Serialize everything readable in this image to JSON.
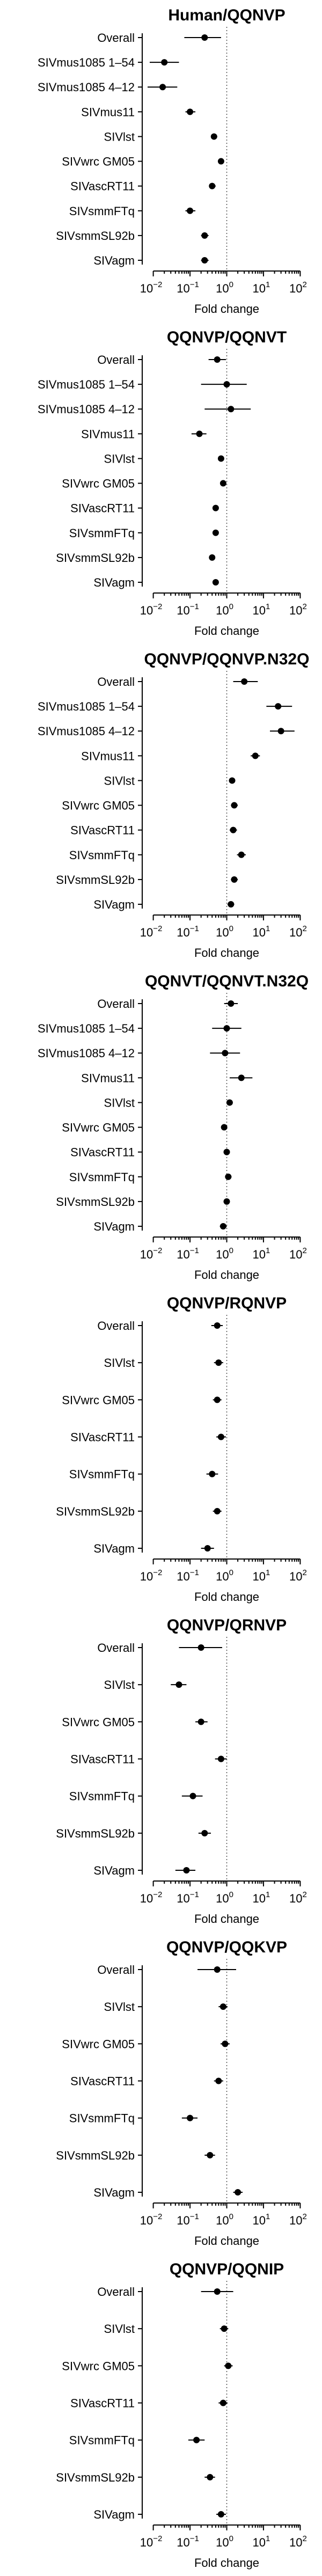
{
  "chart_data": [
    {
      "type": "scatter",
      "title": "Human/QQNVP",
      "xlabel": "Fold change",
      "xscale": "log",
      "xlim": [
        0.005,
        200
      ],
      "xticks": [
        -2,
        -1,
        0,
        1,
        2
      ],
      "reference_line": 1,
      "categories": [
        "Overall",
        "SIVmus1085 1–54",
        "SIVmus1085 4–12",
        "SIVmus11",
        "SIVlst",
        "SIVwrc GM05",
        "SIVascRT11",
        "SIVsmmFTq",
        "SIVsmmSL92b",
        "SIVagm"
      ],
      "points": [
        {
          "label": "Overall",
          "estimate": 0.25,
          "lower": 0.07,
          "upper": 0.7
        },
        {
          "label": "SIVmus1085 1–54",
          "estimate": 0.02,
          "lower": 0.008,
          "upper": 0.05
        },
        {
          "label": "SIVmus1085 4–12",
          "estimate": 0.018,
          "lower": 0.007,
          "upper": 0.045
        },
        {
          "label": "SIVmus11",
          "estimate": 0.1,
          "lower": 0.075,
          "upper": 0.14
        },
        {
          "label": "SIVlst",
          "estimate": 0.45,
          "lower": 0.38,
          "upper": 0.55
        },
        {
          "label": "SIVwrc GM05",
          "estimate": 0.7,
          "lower": 0.6,
          "upper": 0.82
        },
        {
          "label": "SIVascRT11",
          "estimate": 0.4,
          "lower": 0.33,
          "upper": 0.5
        },
        {
          "label": "SIVsmmFTq",
          "estimate": 0.1,
          "lower": 0.075,
          "upper": 0.14
        },
        {
          "label": "SIVsmmSL92b",
          "estimate": 0.25,
          "lower": 0.2,
          "upper": 0.32
        },
        {
          "label": "SIVagm",
          "estimate": 0.25,
          "lower": 0.2,
          "upper": 0.32
        }
      ]
    },
    {
      "type": "scatter",
      "title": "QQNVP/QQNVT",
      "xlabel": "Fold change",
      "xscale": "log",
      "xlim": [
        0.005,
        200
      ],
      "xticks": [
        -2,
        -1,
        0,
        1,
        2
      ],
      "reference_line": 1,
      "categories": [
        "Overall",
        "SIVmus1085 1–54",
        "SIVmus1085 4–12",
        "SIVmus11",
        "SIVlst",
        "SIVwrc GM05",
        "SIVascRT11",
        "SIVsmmFTq",
        "SIVsmmSL92b",
        "SIVagm"
      ],
      "points": [
        {
          "label": "Overall",
          "estimate": 0.55,
          "lower": 0.32,
          "upper": 0.95
        },
        {
          "label": "SIVmus1085 1–54",
          "estimate": 1.0,
          "lower": 0.2,
          "upper": 3.5
        },
        {
          "label": "SIVmus1085 4–12",
          "estimate": 1.3,
          "lower": 0.25,
          "upper": 4.5
        },
        {
          "label": "SIVmus11",
          "estimate": 0.18,
          "lower": 0.11,
          "upper": 0.28
        },
        {
          "label": "SIVlst",
          "estimate": 0.7,
          "lower": 0.6,
          "upper": 0.82
        },
        {
          "label": "SIVwrc GM05",
          "estimate": 0.8,
          "lower": 0.68,
          "upper": 0.95
        },
        {
          "label": "SIVascRT11",
          "estimate": 0.5,
          "lower": 0.42,
          "upper": 0.6
        },
        {
          "label": "SIVsmmFTq",
          "estimate": 0.5,
          "lower": 0.42,
          "upper": 0.6
        },
        {
          "label": "SIVsmmSL92b",
          "estimate": 0.4,
          "lower": 0.34,
          "upper": 0.48
        },
        {
          "label": "SIVagm",
          "estimate": 0.5,
          "lower": 0.42,
          "upper": 0.6
        }
      ]
    },
    {
      "type": "scatter",
      "title": "QQNVP/QQNVP.N32Q",
      "xlabel": "Fold change",
      "xscale": "log",
      "xlim": [
        0.005,
        200
      ],
      "xticks": [
        -2,
        -1,
        0,
        1,
        2
      ],
      "reference_line": 1,
      "categories": [
        "Overall",
        "SIVmus1085 1–54",
        "SIVmus1085 4–12",
        "SIVmus11",
        "SIVlst",
        "SIVwrc GM05",
        "SIVascRT11",
        "SIVsmmFTq",
        "SIVsmmSL92b",
        "SIVagm"
      ],
      "points": [
        {
          "label": "Overall",
          "estimate": 3.0,
          "lower": 1.5,
          "upper": 7.0
        },
        {
          "label": "SIVmus1085 1–54",
          "estimate": 25,
          "lower": 12,
          "upper": 60
        },
        {
          "label": "SIVmus1085 4–12",
          "estimate": 30,
          "lower": 15,
          "upper": 70
        },
        {
          "label": "SIVmus11",
          "estimate": 6.0,
          "lower": 4.5,
          "upper": 8.0
        },
        {
          "label": "SIVlst",
          "estimate": 1.4,
          "lower": 1.15,
          "upper": 1.7
        },
        {
          "label": "SIVwrc GM05",
          "estimate": 1.6,
          "lower": 1.3,
          "upper": 2.0
        },
        {
          "label": "SIVascRT11",
          "estimate": 1.5,
          "lower": 1.2,
          "upper": 1.9
        },
        {
          "label": "SIVsmmFTq",
          "estimate": 2.5,
          "lower": 1.9,
          "upper": 3.3
        },
        {
          "label": "SIVsmmSL92b",
          "estimate": 1.6,
          "lower": 1.3,
          "upper": 2.0
        },
        {
          "label": "SIVagm",
          "estimate": 1.3,
          "lower": 1.05,
          "upper": 1.6
        }
      ]
    },
    {
      "type": "scatter",
      "title": "QQNVT/QQNVT.N32Q",
      "xlabel": "Fold change",
      "xscale": "log",
      "xlim": [
        0.005,
        200
      ],
      "xticks": [
        -2,
        -1,
        0,
        1,
        2
      ],
      "reference_line": 1,
      "categories": [
        "Overall",
        "SIVmus1085 1–54",
        "SIVmus1085 4–12",
        "SIVmus11",
        "SIVlst",
        "SIVwrc GM05",
        "SIVascRT11",
        "SIVsmmFTq",
        "SIVsmmSL92b",
        "SIVagm"
      ],
      "points": [
        {
          "label": "Overall",
          "estimate": 1.3,
          "lower": 0.85,
          "upper": 2.0
        },
        {
          "label": "SIVmus1085 1–54",
          "estimate": 1.0,
          "lower": 0.4,
          "upper": 2.5
        },
        {
          "label": "SIVmus1085 4–12",
          "estimate": 0.9,
          "lower": 0.35,
          "upper": 2.3
        },
        {
          "label": "SIVmus11",
          "estimate": 2.5,
          "lower": 1.2,
          "upper": 5.0
        },
        {
          "label": "SIVlst",
          "estimate": 1.2,
          "lower": 1.0,
          "upper": 1.45
        },
        {
          "label": "SIVwrc GM05",
          "estimate": 0.85,
          "lower": 0.7,
          "upper": 1.0
        },
        {
          "label": "SIVascRT11",
          "estimate": 1.0,
          "lower": 0.82,
          "upper": 1.2
        },
        {
          "label": "SIVsmmFTq",
          "estimate": 1.1,
          "lower": 0.9,
          "upper": 1.35
        },
        {
          "label": "SIVsmmSL92b",
          "estimate": 1.0,
          "lower": 0.82,
          "upper": 1.2
        },
        {
          "label": "SIVagm",
          "estimate": 0.8,
          "lower": 0.65,
          "upper": 1.0
        }
      ]
    },
    {
      "type": "scatter",
      "title": "QQNVP/RQNVP",
      "xlabel": "Fold change",
      "xscale": "log",
      "xlim": [
        0.005,
        200
      ],
      "xticks": [
        -2,
        -1,
        0,
        1,
        2
      ],
      "reference_line": 1,
      "categories": [
        "Overall",
        "SIVlst",
        "SIVwrc GM05",
        "SIVascRT11",
        "SIVsmmFTq",
        "SIVsmmSL92b",
        "SIVagm"
      ],
      "points": [
        {
          "label": "Overall",
          "estimate": 0.55,
          "lower": 0.38,
          "upper": 0.78
        },
        {
          "label": "SIVlst",
          "estimate": 0.6,
          "lower": 0.45,
          "upper": 0.8
        },
        {
          "label": "SIVwrc GM05",
          "estimate": 0.55,
          "lower": 0.42,
          "upper": 0.72
        },
        {
          "label": "SIVascRT11",
          "estimate": 0.7,
          "lower": 0.52,
          "upper": 0.95
        },
        {
          "label": "SIVsmmFTq",
          "estimate": 0.4,
          "lower": 0.28,
          "upper": 0.58
        },
        {
          "label": "SIVsmmSL92b",
          "estimate": 0.55,
          "lower": 0.42,
          "upper": 0.72
        },
        {
          "label": "SIVagm",
          "estimate": 0.3,
          "lower": 0.2,
          "upper": 0.45
        }
      ]
    },
    {
      "type": "scatter",
      "title": "QQNVP/QRNVP",
      "xlabel": "Fold change",
      "xscale": "log",
      "xlim": [
        0.005,
        200
      ],
      "xticks": [
        -2,
        -1,
        0,
        1,
        2
      ],
      "reference_line": 1,
      "categories": [
        "Overall",
        "SIVlst",
        "SIVwrc GM05",
        "SIVascRT11",
        "SIVsmmFTq",
        "SIVsmmSL92b",
        "SIVagm"
      ],
      "points": [
        {
          "label": "Overall",
          "estimate": 0.2,
          "lower": 0.05,
          "upper": 0.75
        },
        {
          "label": "SIVlst",
          "estimate": 0.05,
          "lower": 0.03,
          "upper": 0.08
        },
        {
          "label": "SIVwrc GM05",
          "estimate": 0.2,
          "lower": 0.14,
          "upper": 0.3
        },
        {
          "label": "SIVascRT11",
          "estimate": 0.7,
          "lower": 0.48,
          "upper": 1.0
        },
        {
          "label": "SIVsmmFTq",
          "estimate": 0.12,
          "lower": 0.06,
          "upper": 0.22
        },
        {
          "label": "SIVsmmSL92b",
          "estimate": 0.25,
          "lower": 0.17,
          "upper": 0.37
        },
        {
          "label": "SIVagm",
          "estimate": 0.08,
          "lower": 0.04,
          "upper": 0.14
        }
      ]
    },
    {
      "type": "scatter",
      "title": "QQNVP/QQKVP",
      "xlabel": "Fold change",
      "xscale": "log",
      "xlim": [
        0.005,
        200
      ],
      "xticks": [
        -2,
        -1,
        0,
        1,
        2
      ],
      "reference_line": 1,
      "categories": [
        "Overall",
        "SIVlst",
        "SIVwrc GM05",
        "SIVascRT11",
        "SIVsmmFTq",
        "SIVsmmSL92b",
        "SIVagm"
      ],
      "points": [
        {
          "label": "Overall",
          "estimate": 0.55,
          "lower": 0.16,
          "upper": 1.8
        },
        {
          "label": "SIVlst",
          "estimate": 0.8,
          "lower": 0.6,
          "upper": 1.05
        },
        {
          "label": "SIVwrc GM05",
          "estimate": 0.9,
          "lower": 0.68,
          "upper": 1.2
        },
        {
          "label": "SIVascRT11",
          "estimate": 0.6,
          "lower": 0.45,
          "upper": 0.8
        },
        {
          "label": "SIVsmmFTq",
          "estimate": 0.1,
          "lower": 0.06,
          "upper": 0.16
        },
        {
          "label": "SIVsmmSL92b",
          "estimate": 0.35,
          "lower": 0.25,
          "upper": 0.48
        },
        {
          "label": "SIVagm",
          "estimate": 2.0,
          "lower": 1.5,
          "upper": 2.7
        }
      ]
    },
    {
      "type": "scatter",
      "title": "QQNVP/QQNIP",
      "xlabel": "Fold change",
      "xscale": "log",
      "xlim": [
        0.005,
        200
      ],
      "xticks": [
        -2,
        -1,
        0,
        1,
        2
      ],
      "reference_line": 1,
      "categories": [
        "Overall",
        "SIVlst",
        "SIVwrc GM05",
        "SIVascRT11",
        "SIVsmmFTq",
        "SIVsmmSL92b",
        "SIVagm"
      ],
      "points": [
        {
          "label": "Overall",
          "estimate": 0.55,
          "lower": 0.2,
          "upper": 1.5
        },
        {
          "label": "SIVlst",
          "estimate": 0.85,
          "lower": 0.65,
          "upper": 1.1
        },
        {
          "label": "SIVwrc GM05",
          "estimate": 1.1,
          "lower": 0.85,
          "upper": 1.45
        },
        {
          "label": "SIVascRT11",
          "estimate": 0.8,
          "lower": 0.6,
          "upper": 1.05
        },
        {
          "label": "SIVsmmFTq",
          "estimate": 0.15,
          "lower": 0.09,
          "upper": 0.25
        },
        {
          "label": "SIVsmmSL92b",
          "estimate": 0.35,
          "lower": 0.25,
          "upper": 0.48
        },
        {
          "label": "SIVagm",
          "estimate": 0.7,
          "lower": 0.52,
          "upper": 0.95
        }
      ]
    }
  ]
}
